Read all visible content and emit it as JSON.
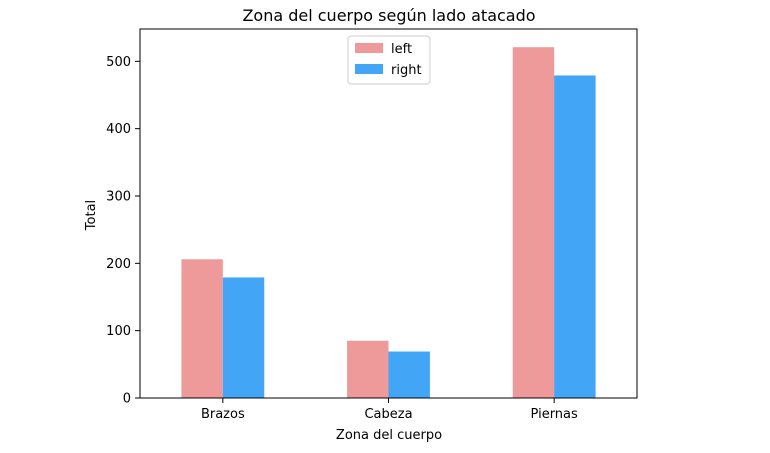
{
  "chart_data": {
    "type": "bar",
    "title": "Zona del cuerpo según lado atacado",
    "xlabel": "Zona del cuerpo",
    "ylabel": "Total",
    "categories": [
      "Brazos",
      "Cabeza",
      "Piernas"
    ],
    "series": [
      {
        "name": "left",
        "values": [
          206,
          85,
          521
        ],
        "color": "#ee9a9a"
      },
      {
        "name": "right",
        "values": [
          179,
          69,
          479
        ],
        "color": "#42a5f5"
      }
    ],
    "ylim": [
      0,
      548
    ],
    "yticks": [
      0,
      100,
      200,
      300,
      400,
      500
    ],
    "grid": false,
    "legend_position": "top-center"
  }
}
